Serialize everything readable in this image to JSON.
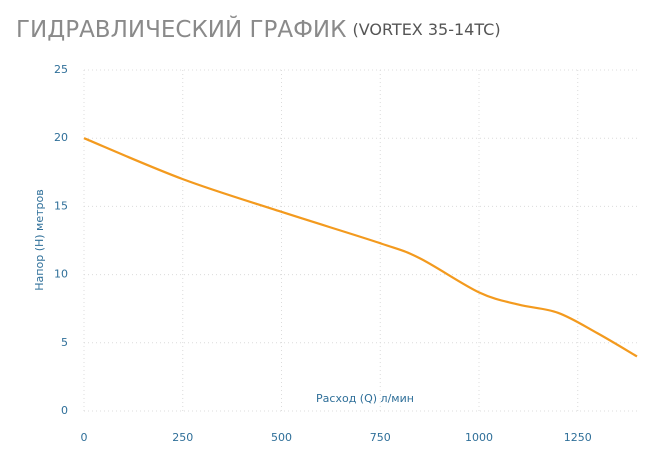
{
  "chart_data": {
    "type": "line",
    "title": "ГИДРАВЛИЧЕСКИЙ ГРАФИК",
    "subtitle": "(VORTEX 35-14TC)",
    "x_label": "Расход (Q) л/мин",
    "y_label": "Напор (H) метров",
    "x": [
      0,
      250,
      500,
      750,
      850,
      1000,
      1100,
      1200,
      1300,
      1400
    ],
    "series": [
      {
        "name": "VORTEX 35-14TC",
        "color": "#f39a1e",
        "values": [
          20,
          17,
          14.6,
          12.3,
          11.2,
          8.7,
          7.8,
          7.2,
          5.7,
          4
        ]
      }
    ],
    "xlim": [
      0,
      1400
    ],
    "xticks": [
      0,
      250,
      500,
      750,
      1000,
      1250
    ],
    "ylim": [
      0,
      25
    ],
    "yticks": [
      0,
      5,
      10,
      15,
      20,
      25
    ],
    "grid": true
  }
}
